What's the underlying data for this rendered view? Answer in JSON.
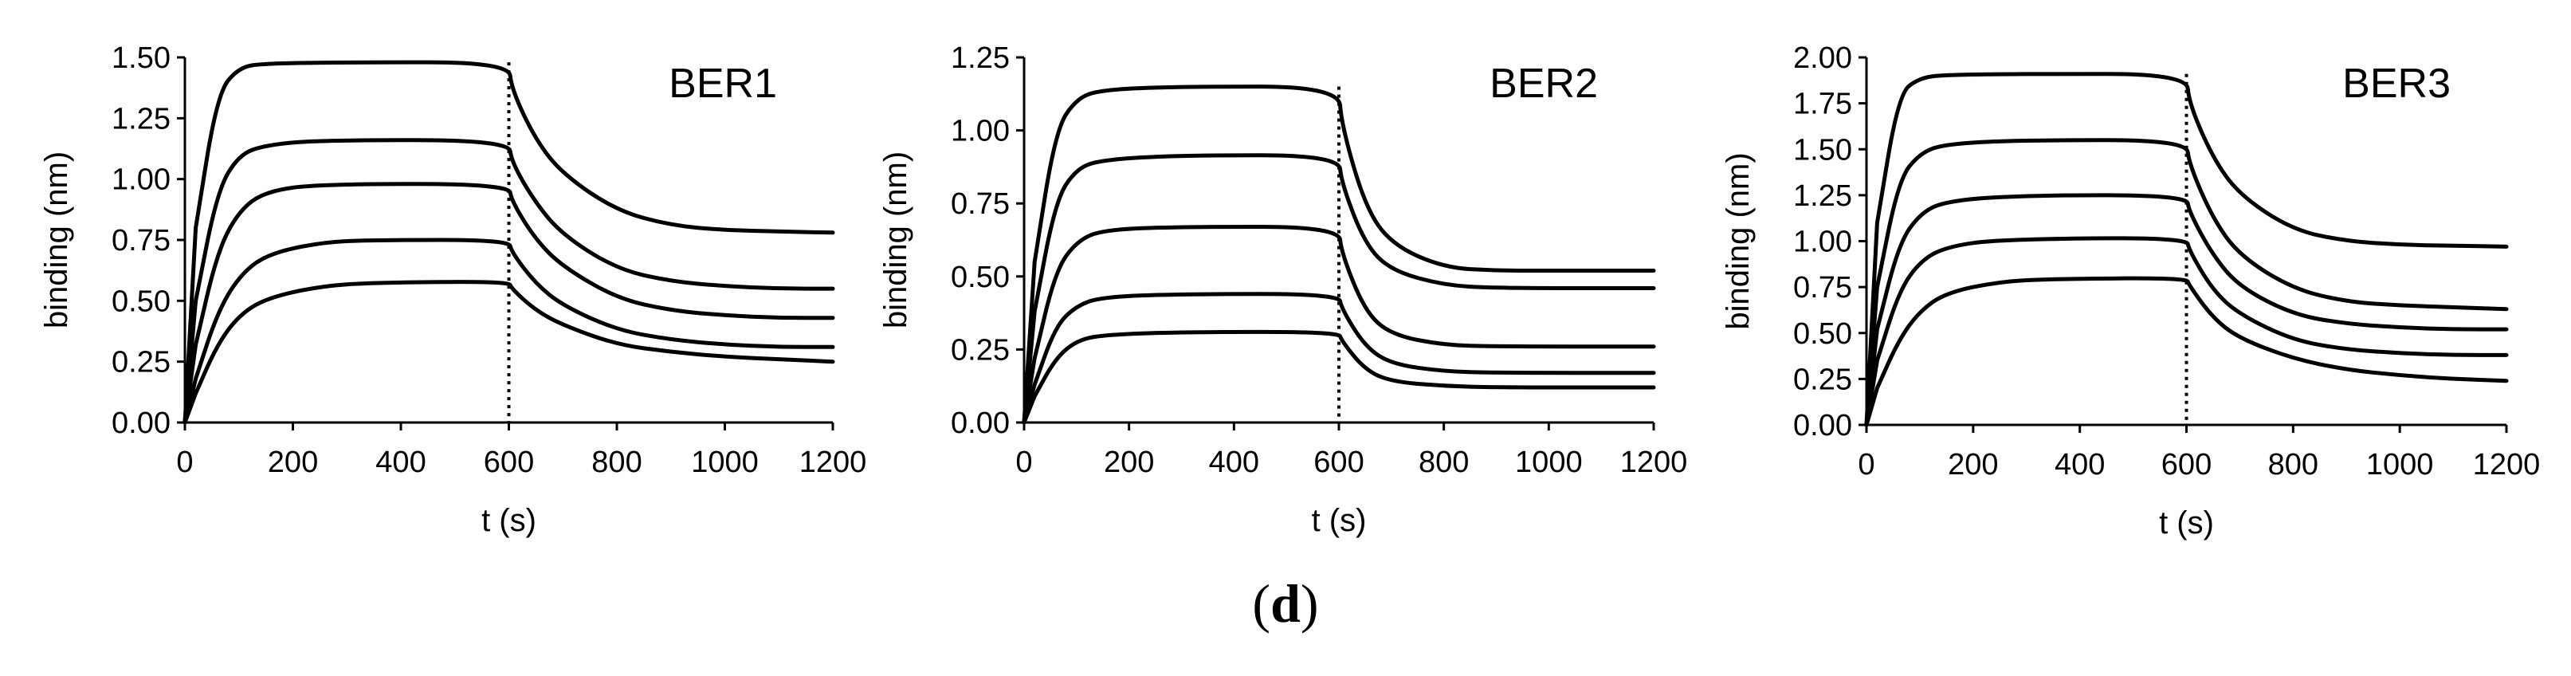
{
  "figure_label": {
    "open": "(",
    "letter": "d",
    "close": ")"
  },
  "chart_data": [
    {
      "type": "line",
      "title": "BER1",
      "xlabel": "t (s)",
      "ylabel": "binding (nm)",
      "xlim": [
        0,
        1200
      ],
      "ylim": [
        0,
        1.5
      ],
      "xticks": [
        "0",
        "200",
        "400",
        "600",
        "800",
        "1000",
        "1200"
      ],
      "yticks": [
        "0.00",
        "0.25",
        "0.50",
        "0.75",
        "1.00",
        "1.25",
        "1.50"
      ],
      "marker_line": {
        "x": 600,
        "style": "dotted"
      },
      "grid": false,
      "legend": "none",
      "series": [
        {
          "values": [
            [
              0,
              0
            ],
            [
              20,
              0.8
            ],
            [
              60,
              1.35
            ],
            [
              100,
              1.46
            ],
            [
              150,
              1.475
            ],
            [
              300,
              1.48
            ],
            [
              600,
              1.48
            ],
            [
              605,
              1.37
            ],
            [
              650,
              1.16
            ],
            [
              700,
              1.02
            ],
            [
              800,
              0.87
            ],
            [
              900,
              0.81
            ],
            [
              1000,
              0.79
            ],
            [
              1100,
              0.785
            ],
            [
              1200,
              0.78
            ]
          ]
        },
        {
          "values": [
            [
              0,
              0
            ],
            [
              20,
              0.5
            ],
            [
              60,
              0.95
            ],
            [
              100,
              1.1
            ],
            [
              150,
              1.14
            ],
            [
              250,
              1.16
            ],
            [
              600,
              1.16
            ],
            [
              605,
              1.07
            ],
            [
              650,
              0.9
            ],
            [
              700,
              0.77
            ],
            [
              800,
              0.63
            ],
            [
              900,
              0.58
            ],
            [
              1000,
              0.56
            ],
            [
              1100,
              0.55
            ],
            [
              1200,
              0.55
            ]
          ]
        },
        {
          "values": [
            [
              0,
              0
            ],
            [
              20,
              0.32
            ],
            [
              60,
              0.7
            ],
            [
              100,
              0.87
            ],
            [
              150,
              0.95
            ],
            [
              250,
              0.98
            ],
            [
              600,
              0.98
            ],
            [
              605,
              0.91
            ],
            [
              650,
              0.75
            ],
            [
              700,
              0.64
            ],
            [
              800,
              0.51
            ],
            [
              900,
              0.46
            ],
            [
              1000,
              0.44
            ],
            [
              1100,
              0.43
            ],
            [
              1200,
              0.43
            ]
          ]
        },
        {
          "values": [
            [
              0,
              0
            ],
            [
              20,
              0.18
            ],
            [
              60,
              0.45
            ],
            [
              100,
              0.6
            ],
            [
              150,
              0.69
            ],
            [
              250,
              0.74
            ],
            [
              350,
              0.75
            ],
            [
              600,
              0.75
            ],
            [
              605,
              0.7
            ],
            [
              650,
              0.57
            ],
            [
              700,
              0.48
            ],
            [
              800,
              0.38
            ],
            [
              900,
              0.34
            ],
            [
              1000,
              0.32
            ],
            [
              1100,
              0.31
            ],
            [
              1200,
              0.31
            ]
          ]
        },
        {
          "values": [
            [
              0,
              0
            ],
            [
              20,
              0.12
            ],
            [
              60,
              0.32
            ],
            [
              100,
              0.44
            ],
            [
              150,
              0.51
            ],
            [
              250,
              0.56
            ],
            [
              350,
              0.575
            ],
            [
              600,
              0.58
            ],
            [
              605,
              0.55
            ],
            [
              650,
              0.46
            ],
            [
              700,
              0.4
            ],
            [
              800,
              0.32
            ],
            [
              900,
              0.29
            ],
            [
              1000,
              0.27
            ],
            [
              1100,
              0.26
            ],
            [
              1200,
              0.25
            ]
          ]
        }
      ]
    },
    {
      "type": "line",
      "title": "BER2",
      "xlabel": "t (s)",
      "ylabel": "binding (nm)",
      "xlim": [
        0,
        1200
      ],
      "ylim": [
        0,
        1.25
      ],
      "xticks": [
        "0",
        "200",
        "400",
        "600",
        "800",
        "1000",
        "1200"
      ],
      "yticks": [
        "0.00",
        "0.25",
        "0.50",
        "0.75",
        "1.00",
        "1.25"
      ],
      "marker_line": {
        "x": 600,
        "style": "dotted"
      },
      "grid": false,
      "legend": "none",
      "series": [
        {
          "values": [
            [
              0,
              0
            ],
            [
              20,
              0.55
            ],
            [
              60,
              1.0
            ],
            [
              100,
              1.11
            ],
            [
              150,
              1.14
            ],
            [
              300,
              1.15
            ],
            [
              600,
              1.15
            ],
            [
              605,
              1.02
            ],
            [
              650,
              0.74
            ],
            [
              700,
              0.61
            ],
            [
              800,
              0.53
            ],
            [
              900,
              0.52
            ],
            [
              1000,
              0.52
            ],
            [
              1200,
              0.52
            ]
          ]
        },
        {
          "values": [
            [
              0,
              0
            ],
            [
              20,
              0.38
            ],
            [
              60,
              0.76
            ],
            [
              100,
              0.87
            ],
            [
              150,
              0.9
            ],
            [
              300,
              0.915
            ],
            [
              600,
              0.915
            ],
            [
              605,
              0.82
            ],
            [
              650,
              0.61
            ],
            [
              700,
              0.52
            ],
            [
              800,
              0.47
            ],
            [
              900,
              0.46
            ],
            [
              1200,
              0.46
            ]
          ]
        },
        {
          "values": [
            [
              0,
              0
            ],
            [
              20,
              0.22
            ],
            [
              60,
              0.52
            ],
            [
              100,
              0.62
            ],
            [
              150,
              0.66
            ],
            [
              300,
              0.67
            ],
            [
              600,
              0.67
            ],
            [
              605,
              0.58
            ],
            [
              650,
              0.38
            ],
            [
              700,
              0.3
            ],
            [
              800,
              0.265
            ],
            [
              900,
              0.26
            ],
            [
              1200,
              0.26
            ]
          ]
        },
        {
          "values": [
            [
              0,
              0
            ],
            [
              20,
              0.13
            ],
            [
              60,
              0.33
            ],
            [
              100,
              0.4
            ],
            [
              150,
              0.43
            ],
            [
              300,
              0.44
            ],
            [
              600,
              0.44
            ],
            [
              605,
              0.39
            ],
            [
              650,
              0.26
            ],
            [
              700,
              0.2
            ],
            [
              800,
              0.175
            ],
            [
              900,
              0.17
            ],
            [
              1200,
              0.17
            ]
          ]
        },
        {
          "values": [
            [
              0,
              0
            ],
            [
              20,
              0.09
            ],
            [
              60,
              0.22
            ],
            [
              100,
              0.28
            ],
            [
              150,
              0.3
            ],
            [
              300,
              0.31
            ],
            [
              600,
              0.31
            ],
            [
              605,
              0.28
            ],
            [
              650,
              0.18
            ],
            [
              700,
              0.14
            ],
            [
              800,
              0.125
            ],
            [
              900,
              0.12
            ],
            [
              1200,
              0.12
            ]
          ]
        }
      ]
    },
    {
      "type": "line",
      "title": "BER3",
      "xlabel": "t (s)",
      "ylabel": "binding (nm)",
      "xlim": [
        0,
        1200
      ],
      "ylim": [
        0,
        2.0
      ],
      "xticks": [
        "0",
        "200",
        "400",
        "600",
        "800",
        "1000",
        "1200"
      ],
      "yticks": [
        "0.00",
        "0.25",
        "0.50",
        "0.75",
        "1.00",
        "1.25",
        "1.50",
        "1.75",
        "2.00"
      ],
      "marker_line": {
        "x": 600,
        "style": "dotted"
      },
      "grid": false,
      "legend": "none",
      "series": [
        {
          "values": [
            [
              0,
              0
            ],
            [
              20,
              1.1
            ],
            [
              60,
              1.8
            ],
            [
              100,
              1.89
            ],
            [
              150,
              1.905
            ],
            [
              300,
              1.91
            ],
            [
              600,
              1.91
            ],
            [
              605,
              1.75
            ],
            [
              650,
              1.45
            ],
            [
              700,
              1.25
            ],
            [
              800,
              1.06
            ],
            [
              900,
              1.0
            ],
            [
              1000,
              0.98
            ],
            [
              1100,
              0.975
            ],
            [
              1200,
              0.97
            ]
          ]
        },
        {
          "values": [
            [
              0,
              0
            ],
            [
              20,
              0.75
            ],
            [
              60,
              1.33
            ],
            [
              100,
              1.48
            ],
            [
              150,
              1.53
            ],
            [
              300,
              1.55
            ],
            [
              600,
              1.55
            ],
            [
              605,
              1.42
            ],
            [
              650,
              1.12
            ],
            [
              700,
              0.92
            ],
            [
              800,
              0.74
            ],
            [
              900,
              0.67
            ],
            [
              1000,
              0.65
            ],
            [
              1100,
              0.64
            ],
            [
              1200,
              0.63
            ]
          ]
        },
        {
          "values": [
            [
              0,
              0
            ],
            [
              20,
              0.52
            ],
            [
              60,
              0.98
            ],
            [
              100,
              1.15
            ],
            [
              150,
              1.22
            ],
            [
              300,
              1.25
            ],
            [
              600,
              1.25
            ],
            [
              605,
              1.16
            ],
            [
              650,
              0.92
            ],
            [
              700,
              0.75
            ],
            [
              800,
              0.6
            ],
            [
              900,
              0.55
            ],
            [
              1000,
              0.53
            ],
            [
              1100,
              0.52
            ],
            [
              1200,
              0.52
            ]
          ]
        },
        {
          "values": [
            [
              0,
              0
            ],
            [
              20,
              0.35
            ],
            [
              60,
              0.72
            ],
            [
              100,
              0.89
            ],
            [
              150,
              0.97
            ],
            [
              250,
              1.01
            ],
            [
              600,
              1.02
            ],
            [
              605,
              0.95
            ],
            [
              650,
              0.73
            ],
            [
              700,
              0.6
            ],
            [
              800,
              0.46
            ],
            [
              900,
              0.41
            ],
            [
              1000,
              0.39
            ],
            [
              1100,
              0.38
            ],
            [
              1200,
              0.38
            ]
          ]
        },
        {
          "values": [
            [
              0,
              0
            ],
            [
              20,
              0.2
            ],
            [
              60,
              0.46
            ],
            [
              100,
              0.62
            ],
            [
              150,
              0.72
            ],
            [
              250,
              0.78
            ],
            [
              350,
              0.795
            ],
            [
              600,
              0.8
            ],
            [
              605,
              0.76
            ],
            [
              650,
              0.58
            ],
            [
              700,
              0.47
            ],
            [
              800,
              0.36
            ],
            [
              900,
              0.3
            ],
            [
              1000,
              0.27
            ],
            [
              1100,
              0.25
            ],
            [
              1200,
              0.24
            ]
          ]
        }
      ]
    }
  ]
}
